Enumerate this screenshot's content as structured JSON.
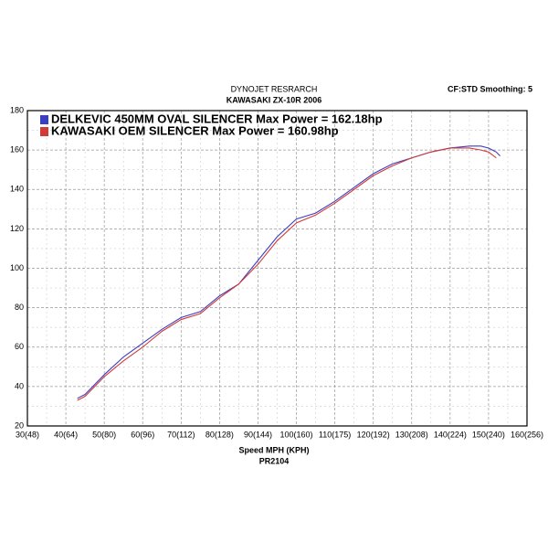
{
  "chart_data": {
    "type": "line",
    "title": "DYNOJET RESRARCH",
    "subtitle": "KAWASAKI ZX-10R 2006",
    "annotation": "CF:STD Smoothing: 5",
    "x_label": "Speed MPH (KPH)",
    "footer": "PR2104",
    "x": [
      43,
      45,
      50,
      55,
      60,
      65,
      70,
      75,
      80,
      85,
      90,
      95,
      100,
      105,
      110,
      115,
      120,
      125,
      130,
      135,
      140,
      145,
      148,
      150,
      152,
      153
    ],
    "series": [
      {
        "name": "DELKEVIC 450MM OVAL SILENCER Max Power  = 162.18hp",
        "color": "#3b3fbf",
        "values": [
          34,
          36,
          46,
          55,
          62,
          69,
          75,
          78,
          86,
          92,
          104,
          116,
          125,
          128,
          134,
          141,
          148,
          153,
          156,
          159,
          161,
          162,
          162,
          161,
          159,
          157
        ]
      },
      {
        "name": "KAWASAKI OEM SILENCER Max Power = 160.98hp",
        "color": "#d23a3a",
        "values": [
          33,
          35,
          45,
          53,
          60,
          68,
          74,
          77,
          85,
          92,
          102,
          114,
          123,
          127,
          133,
          140,
          147,
          152,
          156,
          159,
          161,
          161,
          160,
          159,
          156,
          null
        ]
      }
    ],
    "xlim": [
      30,
      160
    ],
    "xticks": [
      {
        "value": 30,
        "label": "30(48)"
      },
      {
        "value": 40,
        "label": "40(64)"
      },
      {
        "value": 50,
        "label": "50(80)"
      },
      {
        "value": 60,
        "label": "60(96)"
      },
      {
        "value": 70,
        "label": "70(112)"
      },
      {
        "value": 80,
        "label": "80(128)"
      },
      {
        "value": 90,
        "label": "90(144)"
      },
      {
        "value": 100,
        "label": "100(160)"
      },
      {
        "value": 110,
        "label": "110(175)"
      },
      {
        "value": 120,
        "label": "120(192)"
      },
      {
        "value": 130,
        "label": "130(208)"
      },
      {
        "value": 140,
        "label": "140(224)"
      },
      {
        "value": 150,
        "label": "150(240)"
      },
      {
        "value": 160,
        "label": "160(256)"
      }
    ],
    "ylim": [
      20,
      180
    ],
    "yticks": [
      20,
      40,
      60,
      80,
      100,
      120,
      140,
      160,
      180
    ],
    "grid": true
  }
}
